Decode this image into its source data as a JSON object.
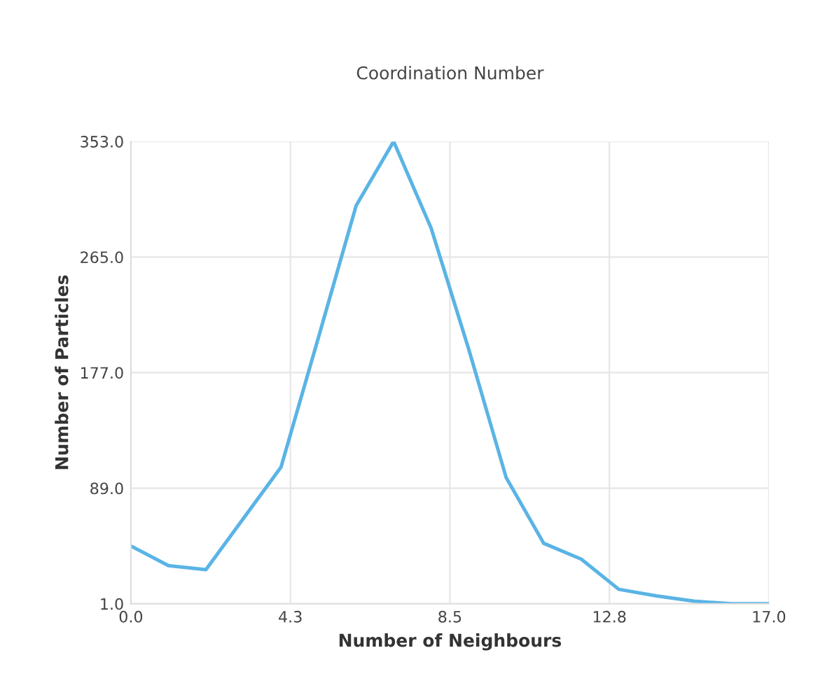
{
  "chart_data": {
    "type": "line",
    "title": "Coordination Number",
    "xlabel": "Number of Neighbours",
    "ylabel": "Number of Particles",
    "x": [
      0,
      1,
      2,
      3,
      4,
      5,
      6,
      7,
      8,
      9,
      10,
      11,
      12,
      13,
      14,
      15,
      16,
      17
    ],
    "series": [
      {
        "color": "#5ab4e5",
        "values": [
          45,
          30,
          27,
          66,
          105,
          204,
          304,
          353,
          287,
          195,
          97,
          47,
          35,
          12,
          7,
          3,
          1,
          1
        ]
      }
    ],
    "xlim": [
      0,
      17
    ],
    "xticks": [
      {
        "value": 0,
        "label": "0.0"
      },
      {
        "value": 4.25,
        "label": "4.3"
      },
      {
        "value": 8.5,
        "label": "8.5"
      },
      {
        "value": 12.75,
        "label": "12.8"
      },
      {
        "value": 17,
        "label": "17.0"
      }
    ],
    "ylim": [
      1,
      353
    ],
    "yticks": [
      {
        "value": 1,
        "label": "1.0"
      },
      {
        "value": 89,
        "label": "89.0"
      },
      {
        "value": 177,
        "label": "177.0"
      },
      {
        "value": 265,
        "label": "265.0"
      },
      {
        "value": 353,
        "label": "353.0"
      }
    ],
    "grid": true,
    "marker": "none",
    "line_style": "solid"
  }
}
